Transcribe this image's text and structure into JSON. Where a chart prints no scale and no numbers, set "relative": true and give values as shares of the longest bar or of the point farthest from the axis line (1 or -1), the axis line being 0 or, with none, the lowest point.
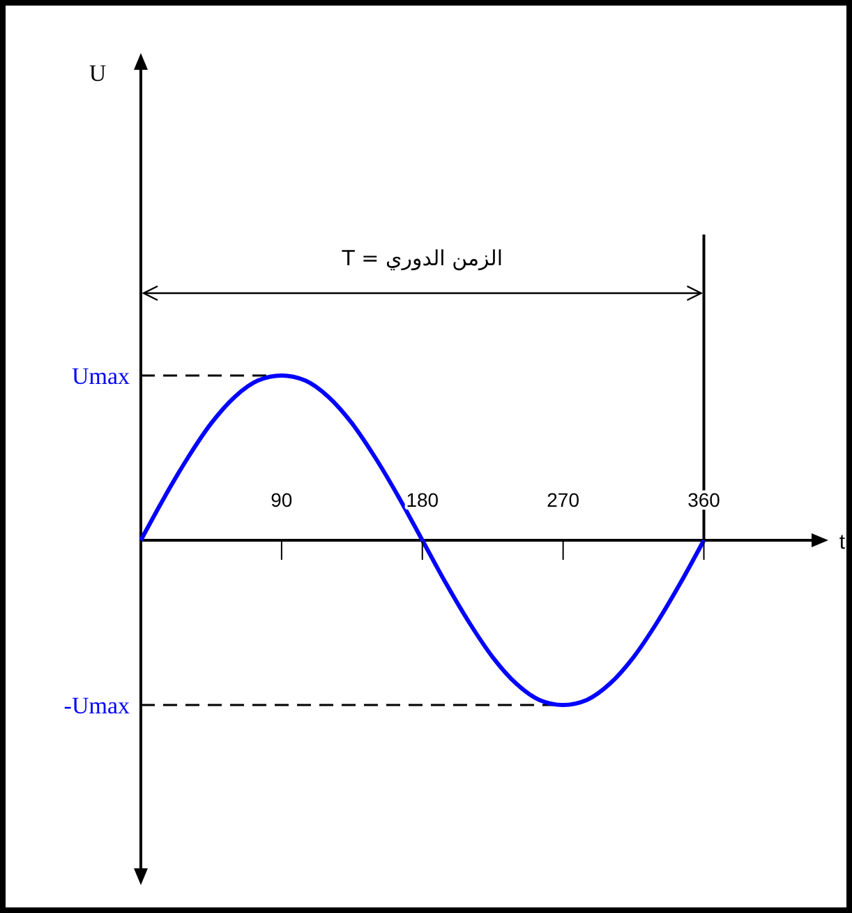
{
  "chart_data": {
    "type": "line",
    "xlabel": "t",
    "annotations": [
      "الزمن الدوري = T",
      "U"
    ],
    "relative": true,
    "x": [
      0,
      15,
      30,
      45,
      60,
      75,
      90,
      105,
      120,
      135,
      150,
      165,
      180,
      195,
      210,
      225,
      240,
      255,
      270,
      285,
      300,
      315,
      330,
      345,
      360
    ],
    "series": [
      {
        "color": "#0000ff",
        "values": [
          0,
          0.26,
          0.5,
          0.71,
          0.87,
          0.97,
          1,
          0.97,
          0.87,
          0.71,
          0.5,
          0.26,
          0,
          -0.26,
          -0.5,
          -0.71,
          -0.87,
          -0.97,
          -1,
          -0.97,
          -0.87,
          -0.71,
          -0.5,
          -0.26,
          0
        ]
      }
    ],
    "xlim": [
      0,
      436
    ],
    "xticks": [
      90,
      180,
      270,
      360
    ],
    "ref_lines": [
      {
        "axis": "y",
        "value": 1,
        "label": "Umax",
        "line_style": "dashed",
        "color": "#000000"
      },
      {
        "axis": "y",
        "value": -1,
        "label": "-Umax",
        "line_style": "dashed",
        "color": "#000000"
      },
      {
        "axis": "x",
        "value": 360,
        "line_style": "solid",
        "color": "#000000"
      }
    ],
    "grid": false,
    "marker": "none",
    "line_style": "solid"
  }
}
